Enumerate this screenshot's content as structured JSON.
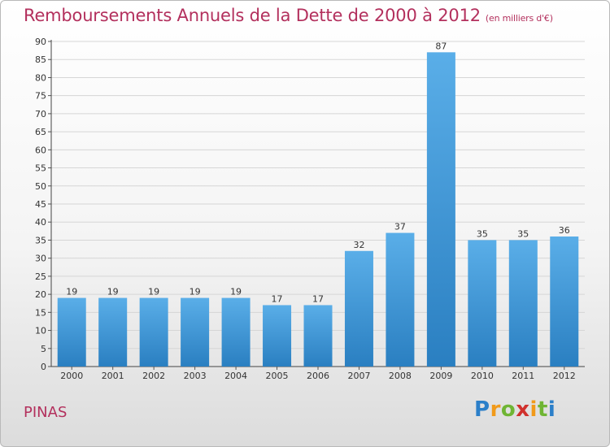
{
  "header": {
    "title": "Remboursements Annuels de la Dette de 2000 à 2012",
    "subtitle": "(en milliers d'€)"
  },
  "footer": {
    "commune": "PINAS",
    "logo": "Proxiti"
  },
  "chart_data": {
    "type": "bar",
    "title": "Remboursements Annuels de la Dette de 2000 à 2012",
    "subtitle": "(en milliers d'€)",
    "xlabel": "",
    "ylabel": "",
    "categories": [
      "2000",
      "2001",
      "2002",
      "2003",
      "2004",
      "2005",
      "2006",
      "2007",
      "2008",
      "2009",
      "2010",
      "2011",
      "2012"
    ],
    "values": [
      19,
      19,
      19,
      19,
      19,
      17,
      17,
      32,
      37,
      87,
      35,
      35,
      36
    ],
    "ylim": [
      0,
      90
    ],
    "yticks": [
      0,
      5,
      10,
      15,
      20,
      25,
      30,
      35,
      40,
      45,
      50,
      55,
      60,
      65,
      70,
      75,
      80,
      85,
      90
    ],
    "grid": true,
    "legend": "none",
    "colors": {
      "bar_light": "#5aaee8",
      "bar_dark": "#2a7fc1",
      "grid": "#d6d6d6",
      "title": "#b3305d"
    }
  }
}
